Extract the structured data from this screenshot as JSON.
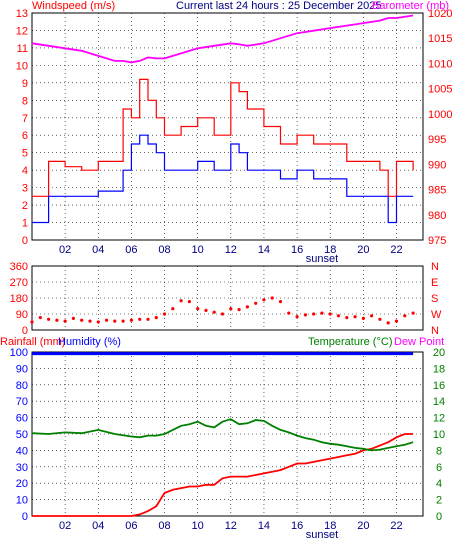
{
  "header": {
    "wind_label": "Windspeed (m/s)",
    "title": "Current last 24 hours : 25 December 2025",
    "baro_label": "Barometer (mb)"
  },
  "colors": {
    "wind_max": "#ff0000",
    "wind_avg": "#0000ff",
    "barometer": "#ff00ff",
    "direction": "#ff0000",
    "rainfall": "#ff0000",
    "humidity": "#0000ff",
    "temperature": "#008000",
    "dew_point": "#ff00ff",
    "axis_left": "#ff0000",
    "axis_right": "#ff0000",
    "grid": "#000000"
  },
  "chart_data": [
    {
      "type": "line",
      "panel": "wind_baro",
      "x_ticks": [
        "02",
        "04",
        "06",
        "08",
        "10",
        "12",
        "14",
        "16",
        "18",
        "20",
        "22"
      ],
      "sunset_label": "sunset",
      "y_left": {
        "label": "Windspeed (m/s)",
        "ticks": [
          0,
          1,
          2,
          3,
          4,
          5,
          6,
          7,
          8,
          9,
          10,
          11,
          12,
          13
        ],
        "lim": [
          0,
          13
        ]
      },
      "y_right": {
        "label": "Barometer (mb)",
        "ticks": [
          975,
          980,
          985,
          990,
          995,
          1000,
          1005,
          1010,
          1015,
          1020
        ],
        "lim": [
          975,
          1020
        ]
      },
      "x_hours": [
        0,
        1,
        2,
        3,
        4,
        5,
        5.5,
        6,
        6.5,
        7,
        7.5,
        8,
        9,
        10,
        11,
        12,
        12.5,
        13,
        14,
        15,
        16,
        17,
        18,
        19,
        20,
        21,
        21.5,
        22,
        23
      ],
      "series": [
        {
          "name": "Wind gust",
          "axis": "left",
          "values": [
            2.5,
            4.5,
            4.2,
            4.0,
            4.5,
            4.5,
            7.5,
            7.0,
            9.2,
            8.0,
            7.0,
            6.0,
            6.5,
            7.0,
            6.0,
            9.0,
            8.5,
            7.5,
            6.5,
            5.5,
            6.0,
            5.5,
            5.5,
            4.5,
            4.5,
            4.0,
            2.5,
            4.5,
            4.0
          ]
        },
        {
          "name": "Wind average",
          "axis": "left",
          "values": [
            1.0,
            2.5,
            2.5,
            2.5,
            2.8,
            2.8,
            4.0,
            5.5,
            6.0,
            5.5,
            5.0,
            4.0,
            4.0,
            4.5,
            4.0,
            5.5,
            5.0,
            4.0,
            4.0,
            3.5,
            4.0,
            3.5,
            3.5,
            2.5,
            2.5,
            2.5,
            1.0,
            2.5,
            2.5
          ]
        },
        {
          "name": "Barometer",
          "axis": "right",
          "values": [
            1014.0,
            1013.5,
            1013.0,
            1012.5,
            1011.5,
            1010.5,
            1010.5,
            1010.2,
            1010.5,
            1011.2,
            1011.0,
            1011.0,
            1012.0,
            1013.0,
            1013.5,
            1014.0,
            1013.8,
            1013.5,
            1014.0,
            1015.0,
            1016.0,
            1016.5,
            1017.0,
            1017.5,
            1018.0,
            1018.5,
            1019.0,
            1019.0,
            1019.5
          ]
        }
      ]
    },
    {
      "type": "scatter",
      "panel": "direction",
      "y_left": {
        "ticks": [
          0,
          90,
          180,
          270,
          360
        ],
        "lim": [
          0,
          360
        ]
      },
      "y_right": {
        "ticks": [
          "N",
          "W",
          "S",
          "E",
          "N"
        ]
      },
      "x_hours": [
        0,
        0.5,
        1,
        1.5,
        2,
        2.5,
        3,
        3.5,
        4,
        4.5,
        5,
        5.5,
        6,
        6.5,
        7,
        7.5,
        8,
        8.5,
        9,
        9.5,
        10,
        10.5,
        11,
        11.5,
        12,
        12.5,
        13,
        13.5,
        14,
        14.5,
        15,
        15.5,
        16,
        16.5,
        17,
        17.5,
        18,
        18.5,
        19,
        19.5,
        20,
        20.5,
        21,
        21.5,
        22,
        22.5,
        23
      ],
      "values": [
        45,
        70,
        60,
        55,
        50,
        65,
        55,
        50,
        45,
        55,
        50,
        50,
        55,
        60,
        60,
        70,
        90,
        120,
        165,
        160,
        120,
        110,
        100,
        90,
        120,
        115,
        130,
        150,
        170,
        180,
        160,
        95,
        75,
        85,
        90,
        95,
        90,
        80,
        70,
        75,
        65,
        80,
        60,
        40,
        50,
        80,
        95
      ]
    },
    {
      "type": "line",
      "panel": "rain_hum_temp",
      "y_left": {
        "label": "Rainfall (mm)",
        "ticks": [
          0,
          10,
          20,
          30,
          40,
          50,
          60,
          70,
          80,
          90,
          100
        ],
        "lim": [
          0,
          100
        ]
      },
      "y_right": {
        "label": "Temperature (°C)",
        "ticks": [
          0,
          2,
          4,
          6,
          8,
          10,
          12,
          14,
          16,
          18,
          20
        ],
        "lim": [
          0,
          20
        ]
      },
      "humidity_label": "Humidity (%)",
      "dew_point_label": "Dew Point",
      "x_hours": [
        0,
        1,
        2,
        3,
        4,
        5,
        6,
        6.5,
        7,
        7.5,
        8,
        8.5,
        9,
        9.5,
        10,
        10.5,
        11,
        11.5,
        12,
        12.5,
        13,
        13.5,
        14,
        14.5,
        15,
        15.5,
        16,
        16.5,
        17,
        17.5,
        18,
        18.5,
        19,
        19.5,
        20,
        20.5,
        21,
        21.5,
        22,
        22.5,
        23
      ],
      "series": [
        {
          "name": "Rainfall",
          "axis": "left",
          "values": [
            0,
            0,
            0,
            0,
            0,
            0,
            0,
            1,
            3,
            6,
            14,
            16,
            17,
            18,
            18,
            19,
            19,
            23,
            24,
            24,
            24,
            25,
            26,
            27,
            28,
            30,
            32,
            32,
            33,
            34,
            35,
            36,
            37,
            38,
            40,
            41,
            43,
            45,
            48,
            50,
            50
          ]
        },
        {
          "name": "Humidity",
          "axis": "left",
          "values": [
            99,
            99,
            99,
            99,
            99,
            99,
            99,
            99,
            99,
            99,
            99,
            99,
            99,
            99,
            99,
            99,
            99,
            99,
            99,
            99,
            99,
            99,
            99,
            99,
            99,
            99,
            99,
            99,
            99,
            99,
            99,
            99,
            99,
            99,
            99,
            99,
            99,
            99,
            99,
            99,
            99
          ]
        },
        {
          "name": "Temperature",
          "axis": "right",
          "values": [
            10.1,
            10.0,
            10.2,
            10.1,
            10.5,
            10.0,
            9.7,
            9.6,
            9.8,
            9.8,
            10.0,
            10.5,
            11.0,
            11.2,
            11.5,
            11.0,
            10.8,
            11.5,
            11.8,
            11.2,
            11.3,
            11.7,
            11.6,
            11.0,
            10.5,
            10.2,
            9.8,
            9.5,
            9.3,
            9.0,
            8.8,
            8.7,
            8.5,
            8.3,
            8.2,
            8.0,
            8.1,
            8.3,
            8.5,
            8.7,
            9.0
          ]
        }
      ]
    }
  ]
}
